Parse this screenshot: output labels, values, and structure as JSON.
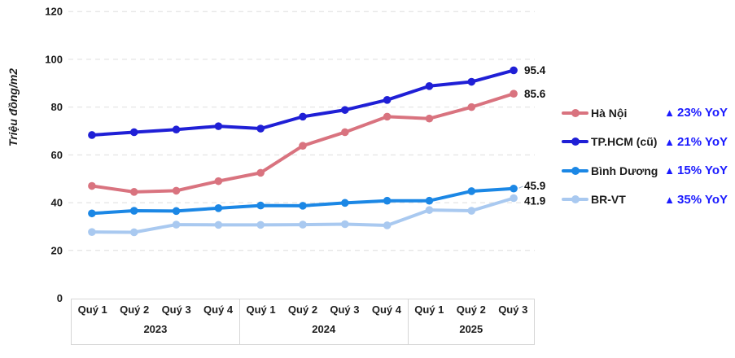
{
  "chart_data": {
    "type": "line",
    "ylabel": "Triệu đồng/m2",
    "unit": "Triệu đồng/m2",
    "y_ticks": [
      0,
      20,
      40,
      60,
      80,
      100,
      120
    ],
    "ylim": [
      0,
      120
    ],
    "grid": "horizontal-dashed",
    "grid_color": "#dedede",
    "axis_box_border_color": "#d6d6d6",
    "text_color": "#1d1d1d",
    "legend_position": "right",
    "yoy_icon": "▲",
    "yoy_color": "#1a1aff",
    "x_groups": [
      {
        "year": "2023",
        "quarters": [
          "Quý 1",
          "Quý 2",
          "Quý 3",
          "Quý 4"
        ]
      },
      {
        "year": "2024",
        "quarters": [
          "Quý 1",
          "Quý 2",
          "Quý 3",
          "Quý 4"
        ]
      },
      {
        "year": "2025",
        "quarters": [
          "Quý 1",
          "Quý 2",
          "Quý 3"
        ]
      }
    ],
    "series": [
      {
        "name": "Hà Nội",
        "color": "#d9737f",
        "yoy": "23% YoY",
        "end_label": "85.6",
        "values": [
          47.0,
          44.5,
          45.0,
          49.0,
          52.5,
          63.8,
          69.5,
          76.0,
          75.2,
          80.0,
          85.6
        ]
      },
      {
        "name": "TP.HCM (cũ)",
        "color": "#1f1fd6",
        "yoy": "21% YoY",
        "end_label": "95.4",
        "values": [
          68.3,
          69.5,
          70.6,
          72.0,
          71.0,
          76.0,
          78.8,
          83.0,
          88.8,
          90.6,
          95.4
        ]
      },
      {
        "name": "Bình Dương",
        "color": "#1b87e5",
        "yoy": "15% YoY",
        "end_label": "45.9",
        "values": [
          35.5,
          36.6,
          36.5,
          37.7,
          38.8,
          38.7,
          39.9,
          40.8,
          40.8,
          44.8,
          45.9
        ]
      },
      {
        "name": "BR-VT",
        "color": "#a9c9f0",
        "yoy": "35% YoY",
        "end_label": "41.9",
        "values": [
          27.7,
          27.6,
          30.8,
          30.7,
          30.7,
          30.8,
          31.0,
          30.5,
          36.9,
          36.6,
          41.9
        ]
      }
    ]
  }
}
